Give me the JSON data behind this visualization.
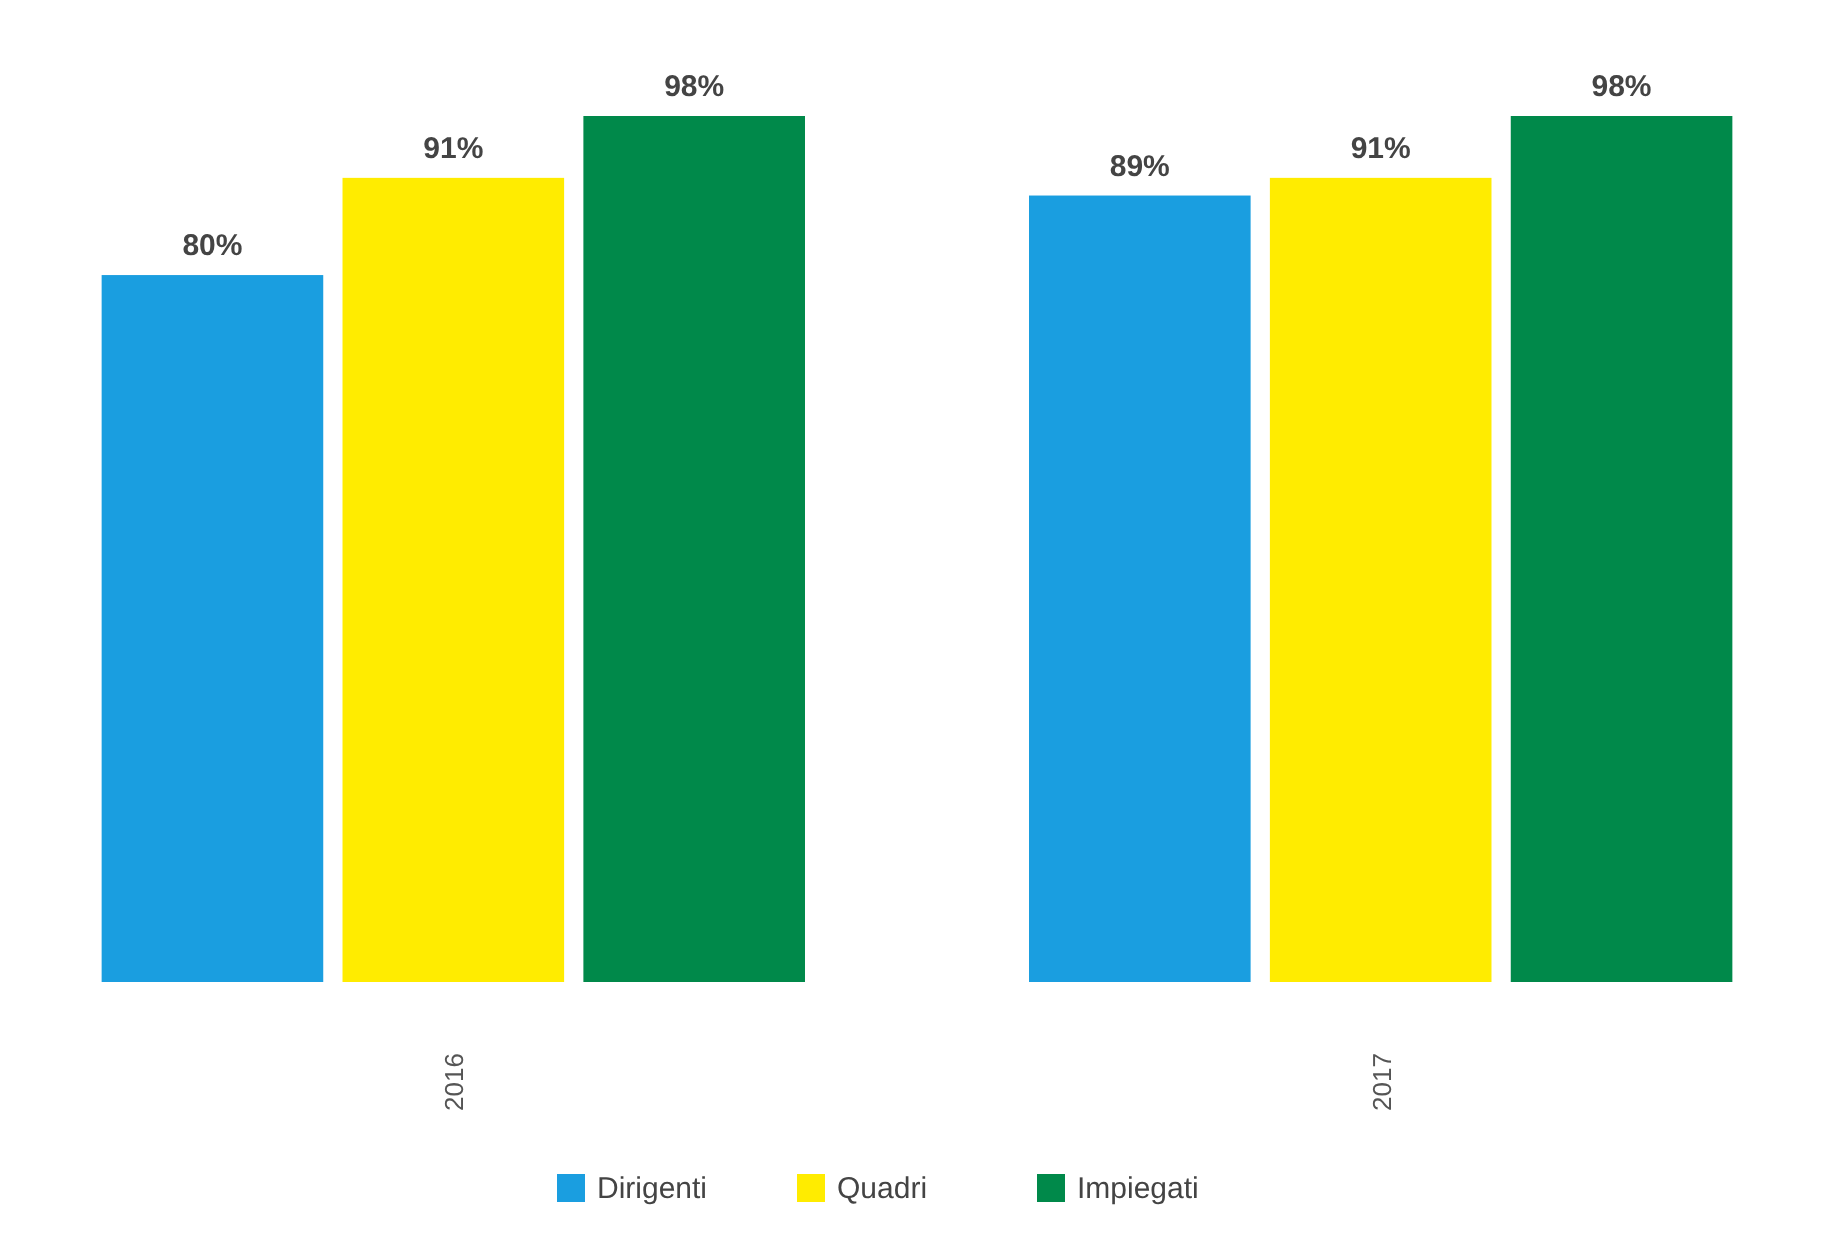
{
  "chart_data": {
    "type": "bar",
    "categories": [
      "2016",
      "2017"
    ],
    "series": [
      {
        "name": "Dirigenti",
        "color": "#1a9ee0",
        "values": [
          80,
          89
        ],
        "value_labels": [
          "80%",
          "89%"
        ]
      },
      {
        "name": "Quadri",
        "color": "#ffec00",
        "values": [
          91,
          91
        ],
        "value_labels": [
          "91%",
          "91%"
        ]
      },
      {
        "name": "Impiegati",
        "color": "#00894a",
        "values": [
          98,
          98
        ],
        "value_labels": [
          "98%",
          "98%"
        ]
      }
    ],
    "legend": "bottom"
  }
}
